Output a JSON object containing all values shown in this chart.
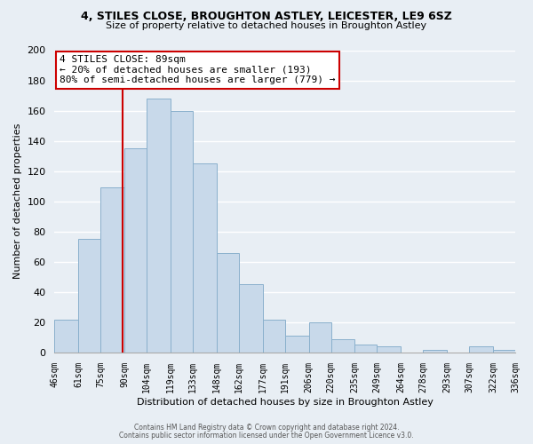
{
  "title": "4, STILES CLOSE, BROUGHTON ASTLEY, LEICESTER, LE9 6SZ",
  "subtitle": "Size of property relative to detached houses in Broughton Astley",
  "xlabel": "Distribution of detached houses by size in Broughton Astley",
  "ylabel": "Number of detached properties",
  "bar_color": "#c8d9ea",
  "bar_edge_color": "#8ab0cc",
  "bins": [
    46,
    61,
    75,
    90,
    104,
    119,
    133,
    148,
    162,
    177,
    191,
    206,
    220,
    235,
    249,
    264,
    278,
    293,
    307,
    322,
    336
  ],
  "values": [
    22,
    75,
    109,
    135,
    168,
    160,
    125,
    66,
    45,
    22,
    11,
    20,
    9,
    5,
    4,
    0,
    2,
    0,
    4,
    2
  ],
  "tick_labels": [
    "46sqm",
    "61sqm",
    "75sqm",
    "90sqm",
    "104sqm",
    "119sqm",
    "133sqm",
    "148sqm",
    "162sqm",
    "177sqm",
    "191sqm",
    "206sqm",
    "220sqm",
    "235sqm",
    "249sqm",
    "264sqm",
    "278sqm",
    "293sqm",
    "307sqm",
    "322sqm",
    "336sqm"
  ],
  "ylim": [
    0,
    200
  ],
  "yticks": [
    0,
    20,
    40,
    60,
    80,
    100,
    120,
    140,
    160,
    180,
    200
  ],
  "property_value": 89,
  "property_label": "4 STILES CLOSE: 89sqm",
  "annotation_line1": "← 20% of detached houses are smaller (193)",
  "annotation_line2": "80% of semi-detached houses are larger (779) →",
  "vline_color": "#cc0000",
  "annotation_box_facecolor": "#ffffff",
  "annotation_box_edgecolor": "#cc0000",
  "footer_line1": "Contains HM Land Registry data © Crown copyright and database right 2024.",
  "footer_line2": "Contains public sector information licensed under the Open Government Licence v3.0.",
  "bg_color": "#e8eef4",
  "grid_color": "#ffffff",
  "grid_linewidth": 1.0
}
